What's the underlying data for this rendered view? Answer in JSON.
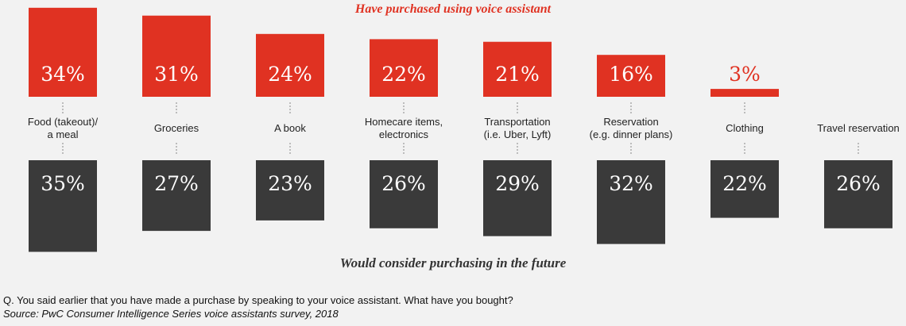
{
  "chart_data": {
    "type": "bar",
    "title_top": "Have purchased using voice assistant",
    "title_bottom": "Would consider purchasing in the future",
    "categories": [
      [
        "Food (takeout)/",
        "a meal"
      ],
      [
        "Groceries"
      ],
      [
        "A book"
      ],
      [
        "Homecare items,",
        "electronics"
      ],
      [
        "Transportation",
        "(i.e. Uber, Lyft)"
      ],
      [
        "Reservation",
        "(e.g. dinner plans)"
      ],
      [
        "Clothing"
      ],
      [
        "Travel reservation"
      ]
    ],
    "series": [
      {
        "name": "Have purchased using voice assistant",
        "values": [
          34,
          31,
          24,
          22,
          21,
          16,
          3,
          null
        ],
        "labels": [
          "34%",
          "31%",
          "24%",
          "22%",
          "21%",
          "16%",
          "3%",
          ""
        ],
        "color": "#e03222"
      },
      {
        "name": "Would consider purchasing in the future",
        "values": [
          35,
          27,
          23,
          26,
          29,
          32,
          22,
          26
        ],
        "labels": [
          "35%",
          "27%",
          "23%",
          "26%",
          "29%",
          "32%",
          "22%",
          "26%"
        ],
        "color": "#3a3a3a"
      }
    ],
    "unit": "%"
  },
  "footnotes": {
    "question": "Q. You said earlier that you have made a purchase by speaking to your voice assistant. What have you bought?",
    "source": "Source: PwC Consumer Intelligence Series voice assistants survey, 2018"
  },
  "colors": {
    "background": "#f2f2f2",
    "accent_red": "#e03222",
    "dark_gray": "#3a3a3a",
    "dotted": "#999999"
  }
}
